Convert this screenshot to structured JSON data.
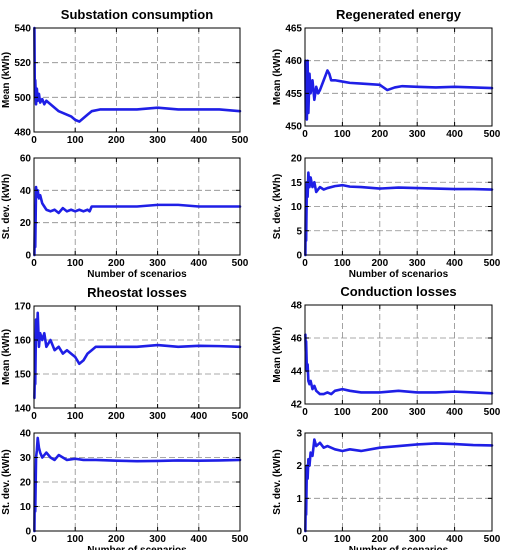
{
  "figure": {
    "series_color": "#1f1fe6",
    "grid": true,
    "grid_style": "dashed",
    "legend": "none"
  },
  "chart_data": [
    {
      "id": "substation-mean",
      "type": "line",
      "title": "Substation consumption",
      "xlabel": "",
      "ylabel": "Mean (kWh)",
      "xlim": [
        0,
        500
      ],
      "ylim": [
        480,
        540
      ],
      "xticks": [
        0,
        100,
        200,
        300,
        400,
        500
      ],
      "yticks": [
        480,
        500,
        520,
        540
      ],
      "series": [
        {
          "x": [
            1,
            2,
            3,
            5,
            7,
            9,
            12,
            15,
            20,
            25,
            30,
            40,
            50,
            60,
            70,
            80,
            90,
            100,
            110,
            120,
            130,
            140,
            160,
            180,
            200,
            250,
            300,
            350,
            400,
            450,
            500
          ],
          "y": [
            540,
            500,
            510,
            496,
            505,
            498,
            502,
            497,
            499,
            496,
            498,
            496,
            494,
            492,
            491,
            490,
            489,
            487,
            486,
            488,
            490,
            492,
            493,
            493,
            493,
            493,
            494,
            493,
            493,
            493,
            492
          ]
        }
      ]
    },
    {
      "id": "substation-std",
      "type": "line",
      "xlabel": "Number of scenarios",
      "ylabel": "St. dev. (kWh)",
      "xlim": [
        0,
        500
      ],
      "ylim": [
        0,
        60
      ],
      "xticks": [
        0,
        100,
        200,
        300,
        400,
        500
      ],
      "yticks": [
        0,
        20,
        40,
        60
      ],
      "series": [
        {
          "x": [
            1,
            2,
            3,
            5,
            7,
            9,
            12,
            15,
            20,
            25,
            30,
            40,
            50,
            60,
            70,
            80,
            90,
            100,
            110,
            120,
            130,
            135,
            140,
            160,
            200,
            250,
            300,
            350,
            400,
            450,
            500
          ],
          "y": [
            0,
            20,
            5,
            42,
            36,
            40,
            35,
            37,
            32,
            30,
            28,
            27,
            28,
            26,
            29,
            27,
            28,
            27,
            28,
            27,
            28,
            27,
            30,
            30,
            30,
            30,
            31,
            31,
            30,
            30,
            30
          ]
        }
      ]
    },
    {
      "id": "regenerated-mean",
      "type": "line",
      "title": "Regenerated energy",
      "xlabel": "",
      "ylabel": "Mean (kWh)",
      "xlim": [
        0,
        500
      ],
      "ylim": [
        450,
        465
      ],
      "xticks": [
        0,
        100,
        200,
        300,
        400,
        500
      ],
      "yticks": [
        450,
        455,
        460,
        465
      ],
      "series": [
        {
          "x": [
            1,
            2,
            3,
            5,
            7,
            9,
            12,
            15,
            20,
            25,
            30,
            35,
            40,
            50,
            60,
            65,
            70,
            80,
            100,
            120,
            150,
            200,
            220,
            240,
            260,
            300,
            350,
            400,
            450,
            500
          ],
          "y": [
            460,
            452,
            458,
            451,
            460,
            452,
            458,
            455,
            457,
            454,
            456,
            455,
            455.5,
            457,
            458.5,
            458,
            457,
            457,
            456.8,
            456.6,
            456.5,
            456.3,
            455.5,
            455.9,
            456.1,
            456,
            455.9,
            456,
            455.9,
            455.8
          ]
        }
      ]
    },
    {
      "id": "regenerated-std",
      "type": "line",
      "xlabel": "Number of scenarios",
      "ylabel": "St. dev. (kWh)",
      "xlim": [
        0,
        500
      ],
      "ylim": [
        0,
        20
      ],
      "xticks": [
        0,
        100,
        200,
        300,
        400,
        500
      ],
      "yticks": [
        0,
        5,
        10,
        15,
        20
      ],
      "series": [
        {
          "x": [
            1,
            2,
            3,
            5,
            7,
            9,
            12,
            15,
            20,
            25,
            30,
            40,
            50,
            60,
            80,
            100,
            120,
            150,
            200,
            250,
            300,
            350,
            400,
            450,
            500
          ],
          "y": [
            0,
            10,
            3,
            15,
            12,
            17,
            14,
            16,
            14,
            15,
            13,
            14,
            13.5,
            13.8,
            14.2,
            14.4,
            14.1,
            14,
            13.7,
            13.9,
            13.8,
            13.7,
            13.6,
            13.6,
            13.5
          ]
        }
      ]
    },
    {
      "id": "rheostat-mean",
      "type": "line",
      "title": "Rheostat losses",
      "xlabel": "",
      "ylabel": "Mean (kWh)",
      "xlim": [
        0,
        500
      ],
      "ylim": [
        140,
        170
      ],
      "xticks": [
        0,
        100,
        200,
        300,
        400,
        500
      ],
      "yticks": [
        140,
        150,
        160,
        170
      ],
      "series": [
        {
          "x": [
            1,
            2,
            3,
            5,
            7,
            9,
            12,
            15,
            20,
            25,
            30,
            40,
            50,
            60,
            70,
            80,
            90,
            100,
            110,
            120,
            130,
            140,
            150,
            160,
            200,
            250,
            300,
            350,
            400,
            450,
            500
          ],
          "y": [
            143,
            150,
            147,
            166,
            160,
            168,
            158,
            162,
            160,
            162,
            158,
            160,
            157,
            158,
            156,
            157,
            156,
            155,
            153,
            154,
            156,
            157,
            158,
            158,
            158,
            158,
            158.5,
            158,
            158.3,
            158.2,
            158
          ]
        }
      ]
    },
    {
      "id": "rheostat-std",
      "type": "line",
      "xlabel": "Number of scenarios",
      "ylabel": "St. dev. (kWh)",
      "xlim": [
        0,
        500
      ],
      "ylim": [
        0,
        40
      ],
      "xticks": [
        0,
        100,
        200,
        300,
        400,
        500
      ],
      "yticks": [
        0,
        10,
        20,
        30,
        40
      ],
      "series": [
        {
          "x": [
            1,
            2,
            3,
            5,
            7,
            9,
            12,
            15,
            20,
            25,
            30,
            40,
            50,
            60,
            70,
            80,
            100,
            120,
            150,
            200,
            250,
            300,
            350,
            400,
            450,
            500
          ],
          "y": [
            0,
            18,
            8,
            30,
            33,
            38,
            34,
            32,
            30,
            31,
            32,
            30,
            29,
            31,
            30,
            29,
            29.5,
            29,
            29,
            28.7,
            28.5,
            28.6,
            28.8,
            28.7,
            28.8,
            29
          ]
        }
      ]
    },
    {
      "id": "conduction-mean",
      "type": "line",
      "title": "Conduction losses",
      "xlabel": "",
      "ylabel": "Mean (kWh)",
      "xlim": [
        0,
        500
      ],
      "ylim": [
        42,
        48
      ],
      "xticks": [
        0,
        100,
        200,
        300,
        400,
        500
      ],
      "yticks": [
        42,
        44,
        46,
        48
      ],
      "series": [
        {
          "x": [
            1,
            2,
            3,
            5,
            7,
            9,
            12,
            15,
            20,
            25,
            30,
            40,
            50,
            60,
            70,
            80,
            100,
            120,
            150,
            200,
            250,
            300,
            350,
            400,
            450,
            500
          ],
          "y": [
            46.2,
            45.2,
            45.8,
            44,
            44.4,
            43.4,
            43.2,
            43.4,
            42.9,
            43.1,
            42.8,
            42.6,
            42.6,
            42.7,
            42.6,
            42.8,
            42.9,
            42.8,
            42.7,
            42.7,
            42.8,
            42.7,
            42.7,
            42.75,
            42.7,
            42.65
          ]
        }
      ]
    },
    {
      "id": "conduction-std",
      "type": "line",
      "xlabel": "Number of scenarios",
      "ylabel": "St. dev. (kWh)",
      "xlim": [
        0,
        500
      ],
      "ylim": [
        0,
        3
      ],
      "xticks": [
        0,
        100,
        200,
        300,
        400,
        500
      ],
      "yticks": [
        0,
        1,
        2,
        3
      ],
      "series": [
        {
          "x": [
            1,
            2,
            3,
            5,
            7,
            9,
            12,
            15,
            20,
            25,
            30,
            40,
            50,
            60,
            80,
            100,
            120,
            150,
            200,
            250,
            300,
            350,
            400,
            450,
            500
          ],
          "y": [
            0,
            1,
            0.5,
            2,
            1.6,
            2.2,
            2.0,
            2.4,
            2.3,
            2.8,
            2.6,
            2.7,
            2.55,
            2.6,
            2.5,
            2.45,
            2.5,
            2.45,
            2.55,
            2.6,
            2.65,
            2.68,
            2.66,
            2.63,
            2.62
          ]
        }
      ]
    }
  ]
}
